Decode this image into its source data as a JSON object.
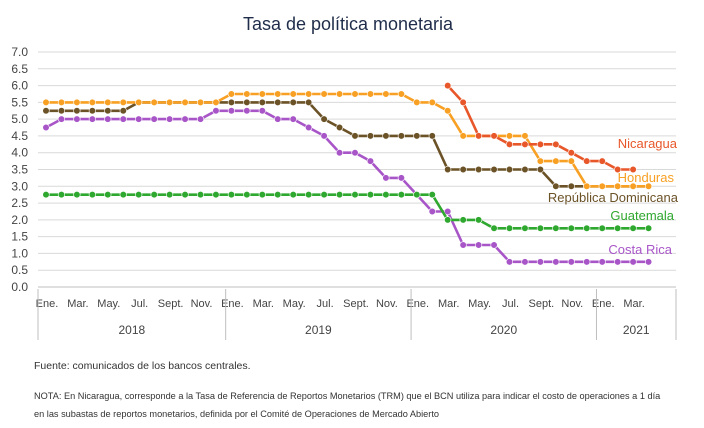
{
  "chart_data": {
    "type": "line",
    "title": "Tasa de política monetaria",
    "ylim": [
      0,
      7
    ],
    "yticks": [
      "0.0",
      "0.5",
      "1.0",
      "1.5",
      "2.0",
      "2.5",
      "3.0",
      "3.5",
      "4.0",
      "4.5",
      "5.0",
      "5.5",
      "6.0",
      "6.5",
      "7.0"
    ],
    "month_labels": [
      "Ene.",
      "Mar.",
      "May.",
      "Jul.",
      "Sept.",
      "Nov.",
      "Ene.",
      "Mar.",
      "May.",
      "Jul.",
      "Sept.",
      "Nov.",
      "Ene.",
      "Mar.",
      "May.",
      "Jul.",
      "Sept.",
      "Nov.",
      "Ene.",
      "Mar."
    ],
    "years": [
      "2018",
      "2019",
      "2020",
      "2021"
    ],
    "grid": true,
    "series": [
      {
        "name": "Nicaragua",
        "color": "#E8572A",
        "start_index": 26,
        "values": [
          6.0,
          5.5,
          4.5,
          4.5,
          4.25,
          4.25,
          4.25,
          4.25,
          4.0,
          3.75,
          3.75,
          3.5,
          3.5
        ]
      },
      {
        "name": "Honduras",
        "color": "#F7A023",
        "start_index": 0,
        "values": [
          5.5,
          5.5,
          5.5,
          5.5,
          5.5,
          5.5,
          5.5,
          5.5,
          5.5,
          5.5,
          5.5,
          5.5,
          5.75,
          5.75,
          5.75,
          5.75,
          5.75,
          5.75,
          5.75,
          5.75,
          5.75,
          5.75,
          5.75,
          5.75,
          5.5,
          5.5,
          5.25,
          4.5,
          4.5,
          4.5,
          4.5,
          4.5,
          3.75,
          3.75,
          3.75,
          3.0,
          3.0,
          3.0,
          3.0,
          3.0
        ]
      },
      {
        "name": "República Dominicana",
        "color": "#6B5227",
        "start_index": 0,
        "values": [
          5.25,
          5.25,
          5.25,
          5.25,
          5.25,
          5.25,
          5.5,
          5.5,
          5.5,
          5.5,
          5.5,
          5.5,
          5.5,
          5.5,
          5.5,
          5.5,
          5.5,
          5.5,
          5.0,
          4.75,
          4.5,
          4.5,
          4.5,
          4.5,
          4.5,
          4.5,
          3.5,
          3.5,
          3.5,
          3.5,
          3.5,
          3.5,
          3.5,
          3.0,
          3.0,
          3.0,
          3.0,
          3.0,
          3.0,
          3.0
        ]
      },
      {
        "name": "Guatemala",
        "color": "#2FA82F",
        "start_index": 0,
        "values": [
          2.75,
          2.75,
          2.75,
          2.75,
          2.75,
          2.75,
          2.75,
          2.75,
          2.75,
          2.75,
          2.75,
          2.75,
          2.75,
          2.75,
          2.75,
          2.75,
          2.75,
          2.75,
          2.75,
          2.75,
          2.75,
          2.75,
          2.75,
          2.75,
          2.75,
          2.75,
          2.0,
          2.0,
          2.0,
          1.75,
          1.75,
          1.75,
          1.75,
          1.75,
          1.75,
          1.75,
          1.75,
          1.75,
          1.75,
          1.75
        ]
      },
      {
        "name": "Costa Rica",
        "color": "#A855C8",
        "start_index": 0,
        "values": [
          4.75,
          5.0,
          5.0,
          5.0,
          5.0,
          5.0,
          5.0,
          5.0,
          5.0,
          5.0,
          5.0,
          5.25,
          5.25,
          5.25,
          5.25,
          5.0,
          5.0,
          4.75,
          4.5,
          4.0,
          4.0,
          3.75,
          3.25,
          3.25,
          2.75,
          2.25,
          2.25,
          1.25,
          1.25,
          1.25,
          0.75,
          0.75,
          0.75,
          0.75,
          0.75,
          0.75,
          0.75,
          0.75,
          0.75,
          0.75
        ]
      }
    ]
  },
  "footnotes": {
    "source": "Fuente: comunicados de los bancos centrales.",
    "note": "NOTA: En Nicaragua, corresponde a la Tasa de Referencia de Reportos Monetarios (TRM) que el BCN utiliza para indicar el costo de operaciones a 1 día en las subastas de reportos monetarios, definida por el Comité de Operaciones de Mercado Abierto"
  }
}
